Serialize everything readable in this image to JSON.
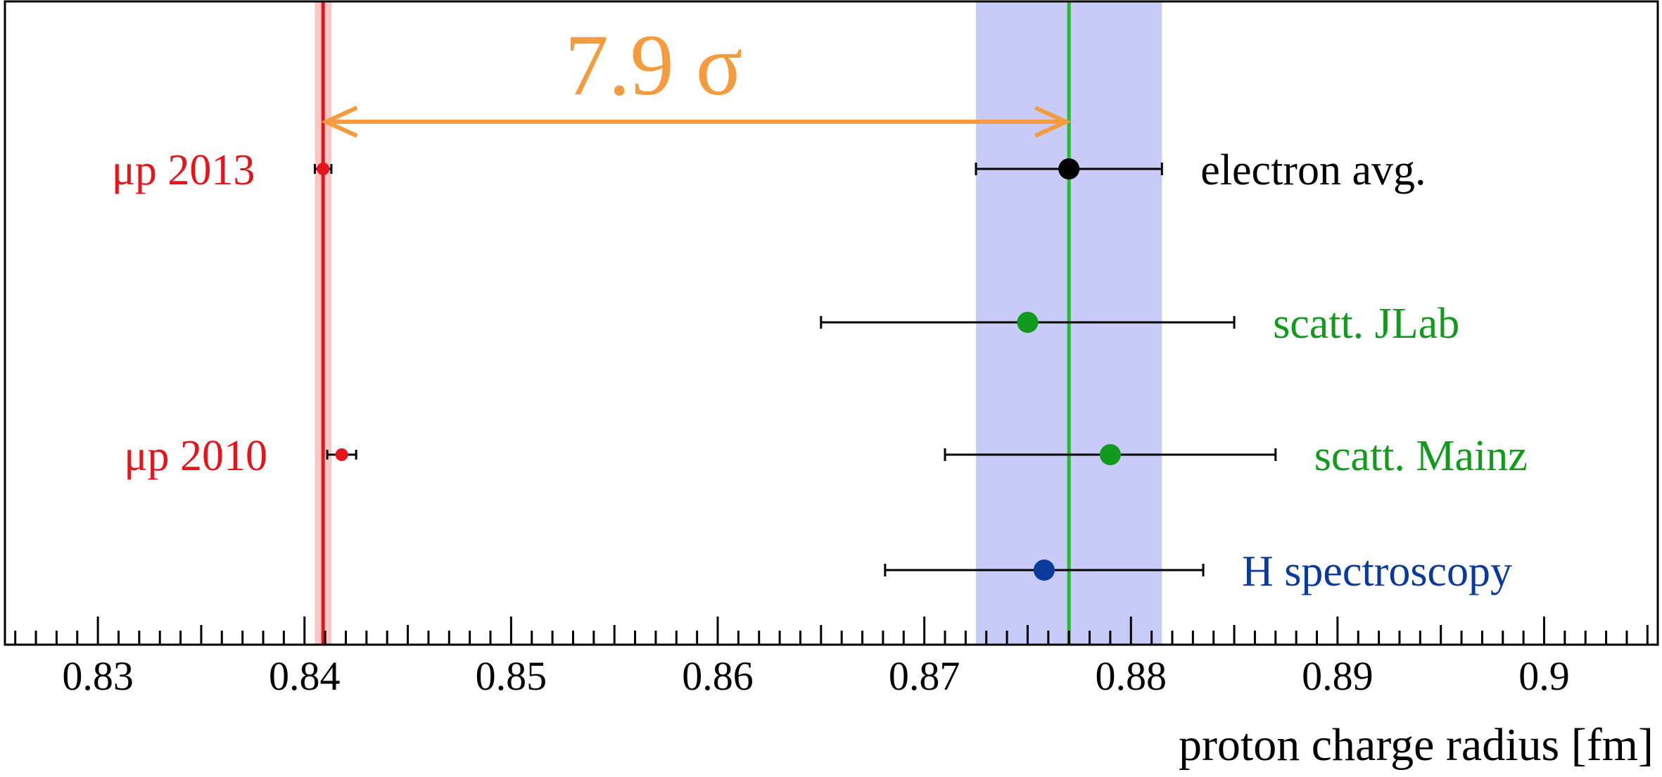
{
  "chart_data": {
    "type": "scatter",
    "title": "",
    "xlabel": "proton charge radius [fm]",
    "ylabel": "",
    "xlim": [
      0.8255,
      0.9055
    ],
    "grid": false,
    "x_ticks": [
      "0.83",
      "0.84",
      "0.85",
      "0.86",
      "0.87",
      "0.88",
      "0.89",
      "0.9"
    ],
    "points": [
      {
        "label": "μp 2013",
        "x": 0.8409,
        "err": 0.0004,
        "color": "#e8141c",
        "label_side": "left"
      },
      {
        "label": "electron avg.",
        "x": 0.877,
        "err": 0.0045,
        "color": "#000000",
        "label_side": "right"
      },
      {
        "label": "scatt. JLab",
        "x": 0.875,
        "err": 0.01,
        "color": "#129a1c",
        "label_side": "right"
      },
      {
        "label": "μp 2010",
        "x": 0.8418,
        "err": 0.0007,
        "color": "#e8141c",
        "label_side": "left"
      },
      {
        "label": "scatt. Mainz",
        "x": 0.879,
        "err": 0.008,
        "color": "#129a1c",
        "label_side": "right"
      },
      {
        "label": "H spectroscopy",
        "x": 0.8758,
        "err": 0.0077,
        "color": "#0a3a9c",
        "label_side": "right"
      }
    ],
    "bands": [
      {
        "name": "electron",
        "center": 0.877,
        "halfwidth": 0.0045,
        "fill": "#c8caf8",
        "line": "#1fc21f"
      },
      {
        "name": "muonic",
        "center": 0.8409,
        "halfwidth": 0.0004,
        "fill": "#f9c6c6",
        "line": "#e8141c"
      }
    ],
    "annotation": {
      "text": "7.9 σ",
      "from": 0.8409,
      "to": 0.877,
      "color": "#f49b3e"
    }
  }
}
